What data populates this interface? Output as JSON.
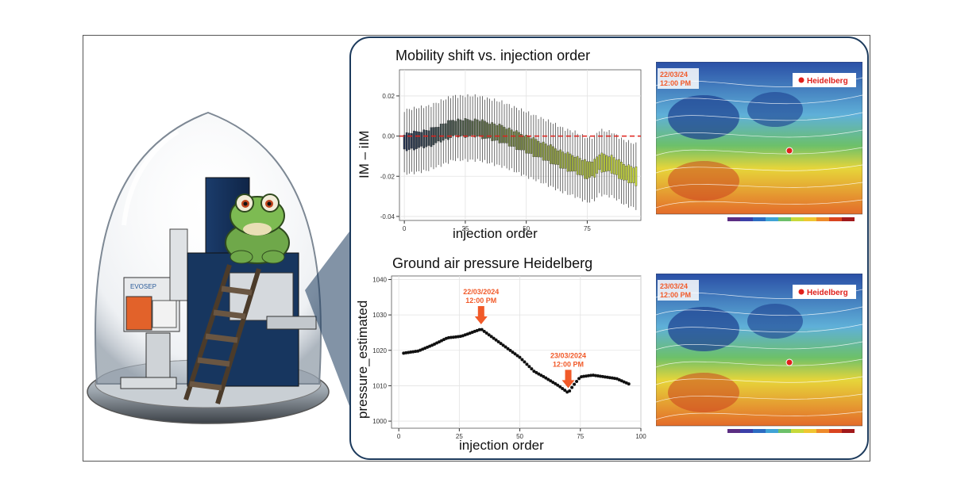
{
  "chart_data": [
    {
      "type": "box",
      "title": "Mobility shift vs. injection order",
      "xlabel": "injection order",
      "ylabel": "IM – iIM",
      "xlim": [
        -2,
        97
      ],
      "ylim": [
        -0.042,
        0.033
      ],
      "xticks": [
        0,
        25,
        50,
        75
      ],
      "yticks": [
        0.02,
        0.0,
        -0.02,
        -0.04
      ],
      "ytick_labels": [
        "0.02",
        "0.00",
        "-0.02",
        "-0.04"
      ],
      "reference_line": {
        "y": 0.0,
        "color": "#e0201b",
        "style": "dashed"
      },
      "n_boxes": 96,
      "median_anchor_points": [
        [
          0,
          -0.003
        ],
        [
          10,
          -0.001
        ],
        [
          20,
          0.004
        ],
        [
          30,
          0.004
        ],
        [
          40,
          0.001
        ],
        [
          50,
          -0.004
        ],
        [
          60,
          -0.009
        ],
        [
          65,
          -0.012
        ],
        [
          70,
          -0.014
        ],
        [
          75,
          -0.017
        ],
        [
          78,
          -0.016
        ],
        [
          80,
          -0.013
        ],
        [
          85,
          -0.014
        ],
        [
          90,
          -0.018
        ],
        [
          95,
          -0.02
        ]
      ],
      "box_color_start": "#23304d",
      "box_color_end": "#c6d63a"
    },
    {
      "type": "scatter",
      "title": "Ground air pressure Heidelberg",
      "xlabel": "injection order",
      "ylabel": "pressure_estimated",
      "xlim": [
        -3,
        100
      ],
      "ylim": [
        998,
        1041
      ],
      "xticks": [
        0,
        25,
        50,
        75,
        100
      ],
      "yticks": [
        1000,
        1010,
        1020,
        1030,
        1040
      ],
      "n_points": 96,
      "curve_anchor_points": [
        [
          2,
          1019.2
        ],
        [
          8,
          1019.8
        ],
        [
          14,
          1021.5
        ],
        [
          20,
          1023.5
        ],
        [
          26,
          1024
        ],
        [
          30,
          1025
        ],
        [
          34,
          1026
        ],
        [
          38,
          1024
        ],
        [
          44,
          1021
        ],
        [
          50,
          1018
        ],
        [
          56,
          1014
        ],
        [
          60,
          1012.5
        ],
        [
          66,
          1010
        ],
        [
          70,
          1008
        ],
        [
          72,
          1010
        ],
        [
          75,
          1012.5
        ],
        [
          80,
          1013
        ],
        [
          85,
          1012.5
        ],
        [
          90,
          1012
        ],
        [
          95,
          1010.5
        ]
      ],
      "annotations": [
        {
          "line1": "22/03/2024",
          "line2": "12:00 PM",
          "x": 34,
          "y": 1026
        },
        {
          "line1": "23/03/2024",
          "line2": "12:00 PM",
          "x": 70,
          "y": 1008
        }
      ],
      "annotation_color": "#f15a29"
    }
  ],
  "maps": [
    {
      "date": "22/03/24",
      "time": "12:00 PM",
      "label": "Heidelberg"
    },
    {
      "date": "23/03/24",
      "time": "12:00 PM",
      "label": "Heidelberg"
    }
  ],
  "colors": {
    "panel_border": "#1c3a5c",
    "accent": "#f15a29",
    "ref_line": "#e0201b"
  }
}
